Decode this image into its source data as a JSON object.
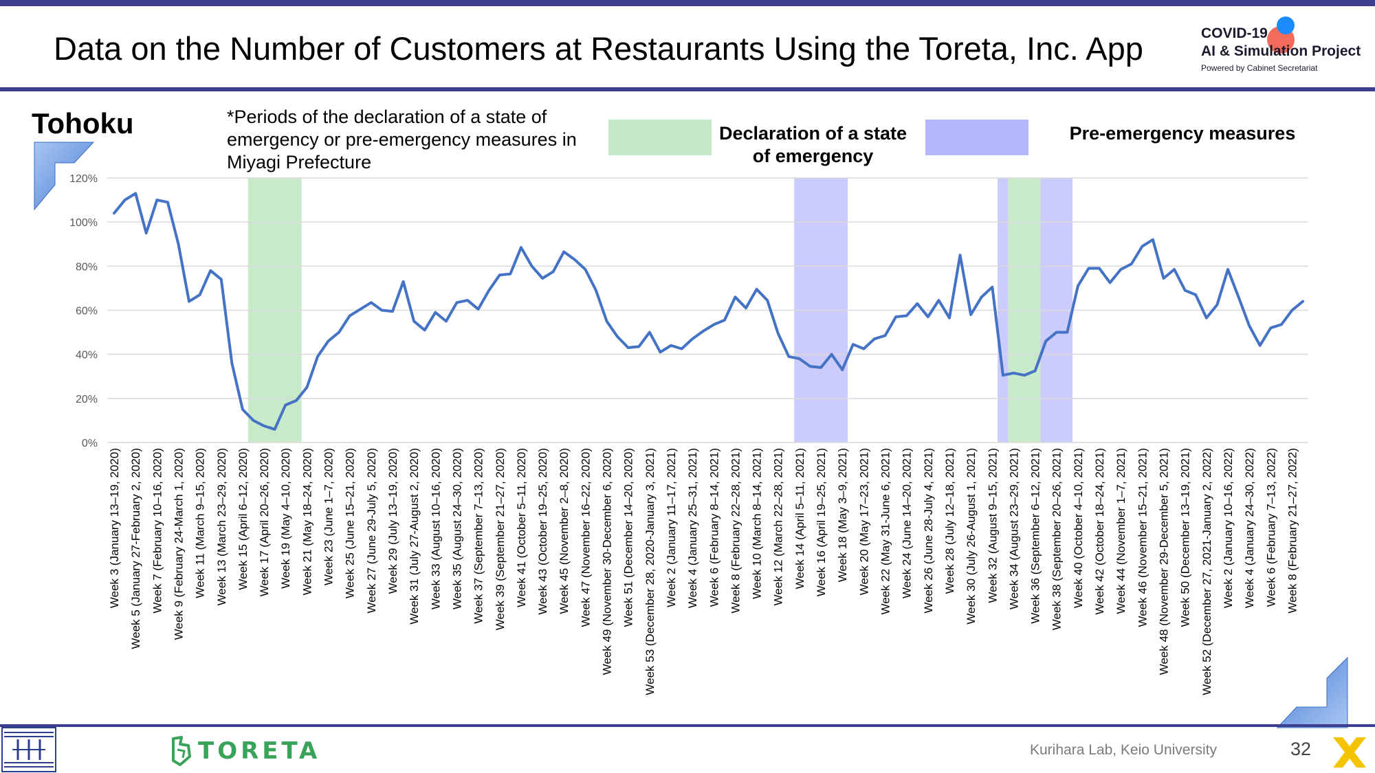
{
  "page": {
    "title": "Data on the Number of Customers at Restaurants Using the Toreta, Inc. App",
    "region": "Tohoku",
    "note": "*Periods of the declaration of a state of emergency or pre-emergency measures in Miyagi Prefecture",
    "legend": {
      "emergency_label": "Declaration of a state of emergency",
      "emergency_color": "#c5e8c7",
      "preemergency_label": "Pre-emergency measures",
      "preemergency_color": "#b5b7fb"
    },
    "logo": {
      "line1": "COVID-19",
      "line2": "AI & Simulation Project",
      "line3": "Powered by Cabinet Secretariat"
    },
    "toreta_brand": "TORETA",
    "footer": "Kurihara Lab, Keio University",
    "page_number": "32",
    "colors": {
      "accent_bar": "#3e3e8f",
      "line": "#4472c4",
      "toreta_green": "#3aa35a"
    }
  },
  "chart_data": {
    "type": "line",
    "title": "",
    "xlabel": "",
    "ylabel": "",
    "ylim": [
      0,
      120
    ],
    "y_ticks": [
      "0%",
      "20%",
      "40%",
      "60%",
      "80%",
      "100%",
      "120%"
    ],
    "grid": true,
    "x_tick_labels": [
      "Week 3 (January 13–19, 2020)",
      "Week 5 (January 27-February 2, 2020)",
      "Week 7 (February 10–16, 2020)",
      "Week 9 (February 24-March 1, 2020)",
      "Week 11 (March 9–15, 2020)",
      "Week 13 (March 23–29, 2020)",
      "Week 15 (April 6–12, 2020)",
      "Week 17 (April 20–26, 2020)",
      "Week 19 (May 4–10, 2020)",
      "Week 21 (May 18–24, 2020)",
      "Week 23 (June 1–7, 2020)",
      "Week 25 (June 15–21, 2020)",
      "Week 27 (June 29-July 5, 2020)",
      "Week 29 (July 13–19, 2020)",
      "Week 31 (July 27-August 2, 2020)",
      "Week 33 (August 10–16, 2020)",
      "Week 35 (August 24–30, 2020)",
      "Week 37 (September 7–13, 2020)",
      "Week 39 (September 21–27, 2020)",
      "Week 41 (October 5–11, 2020)",
      "Week 43 (October 19–25, 2020)",
      "Week 45 (November 2–8, 2020)",
      "Week 47 (November 16–22, 2020)",
      "Week 49 (November 30-December 6, 2020)",
      "Week 51 (December 14–20, 2020)",
      "Week 53 (December 28, 2020-January 3, 2021)",
      "Week 2 (January 11–17, 2021)",
      "Week 4 (January 25–31, 2021)",
      "Week 6 (February 8–14, 2021)",
      "Week 8 (February 22–28, 2021)",
      "Week 10 (March 8–14, 2021)",
      "Week 12 (March 22–28, 2021)",
      "Week 14 (April 5–11, 2021)",
      "Week 16 (April 19–25, 2021)",
      "Week 18 (May 3–9, 2021)",
      "Week 20 (May 17–23, 2021)",
      "Week 22 (May 31-June 6, 2021)",
      "Week 24 (June 14–20, 2021)",
      "Week 26 (June 28-July 4, 2021)",
      "Week 28 (July 12–18, 2021)",
      "Week 30 (July 26-August 1, 2021)",
      "Week 32 (August 9–15, 2021)",
      "Week 34 (August 23–29, 2021)",
      "Week 36 (September 6–12, 2021)",
      "Week 38 (September 20–26, 2021)",
      "Week 40 (October 4–10, 2021)",
      "Week 42 (October 18–24, 2021)",
      "Week 44 (November 1–7, 2021)",
      "Week 46 (November 15–21, 2021)",
      "Week 48 (November 29-December 5, 2021)",
      "Week 50 (December 13–19, 2021)",
      "Week 52 (December 27, 2021-January 2, 2022)",
      "Week 2 (January 10–16, 2022)",
      "Week 4 (January 24–30, 2022)",
      "Week 6 (February 7–13, 2022)",
      "Week 8 (February 21–27, 2022)"
    ],
    "series": [
      {
        "values": [
          104,
          110,
          113,
          95,
          110,
          109,
          90,
          64,
          67,
          78,
          74,
          36,
          15,
          10,
          7.5,
          6,
          17,
          19,
          25,
          39,
          46,
          50,
          57.5,
          60.5,
          63.5,
          60,
          59.5,
          73,
          55,
          51,
          59,
          55,
          63.5,
          64.5,
          60.5,
          69,
          76,
          76.5,
          88.5,
          80,
          74.5,
          77.5,
          86.5,
          83,
          78.5,
          69,
          55,
          48,
          43,
          43.5,
          50,
          41,
          44,
          42.5,
          47,
          50.5,
          53.5,
          55.5,
          66,
          61,
          69.5,
          64.5,
          49.5,
          39,
          38,
          34.5,
          34,
          40,
          33,
          44.5,
          42.5,
          47,
          48.5,
          57,
          57.5,
          63,
          57,
          64.5,
          56.5,
          85,
          58,
          66,
          70.5,
          30.5,
          31.5,
          30.5,
          32.5,
          46,
          50,
          50,
          71,
          79,
          79,
          72.5,
          78.5,
          81,
          89,
          92,
          74.5,
          78.5,
          69,
          67,
          56.5,
          62.5,
          78.5,
          66,
          53,
          44,
          52,
          53.5,
          60,
          64
        ]
      }
    ],
    "shaded_periods": [
      {
        "type": "emergency",
        "from_index": 12.5,
        "to_index": 17.5
      },
      {
        "type": "preemergency",
        "from_index": 63.5,
        "to_index": 68.5
      },
      {
        "type": "preemergency",
        "from_index": 82.5,
        "to_index": 83.5
      },
      {
        "type": "emergency",
        "from_index": 83.5,
        "to_index": 86.5
      },
      {
        "type": "preemergency",
        "from_index": 86.5,
        "to_index": 89.5
      }
    ]
  }
}
